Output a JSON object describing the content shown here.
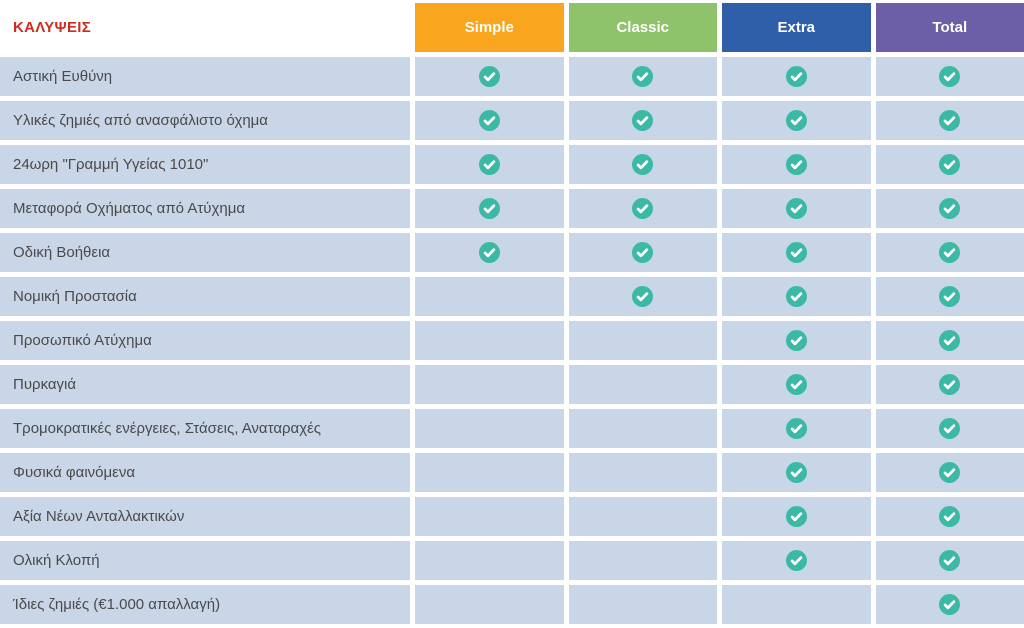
{
  "table": {
    "corner_label": "ΚΑΛΥΨΕΙΣ",
    "corner_color": "#cb2d20",
    "row_bg": "#c9d6e7",
    "check_color": "#3bb9a4",
    "plans": [
      {
        "label": "Simple",
        "color": "#f9a51d"
      },
      {
        "label": "Classic",
        "color": "#8ec36b"
      },
      {
        "label": "Extra",
        "color": "#2f5fa9"
      },
      {
        "label": "Total",
        "color": "#6c5fa7"
      }
    ],
    "rows": [
      {
        "label": "Αστική Ευθύνη",
        "checks": [
          true,
          true,
          true,
          true
        ]
      },
      {
        "label": "Υλικές ζημιές από ανασφάλιστο όχημα",
        "checks": [
          true,
          true,
          true,
          true
        ]
      },
      {
        "label": "24ωρη \"Γραμμή Υγείας 1010\"",
        "checks": [
          true,
          true,
          true,
          true
        ]
      },
      {
        "label": "Μεταφορά Οχήματος από Ατύχημα",
        "checks": [
          true,
          true,
          true,
          true
        ]
      },
      {
        "label": "Οδική Βοήθεια",
        "checks": [
          true,
          true,
          true,
          true
        ]
      },
      {
        "label": "Νομική Προστασία",
        "checks": [
          false,
          true,
          true,
          true
        ]
      },
      {
        "label": "Προσωπικό Ατύχημα",
        "checks": [
          false,
          false,
          true,
          true
        ]
      },
      {
        "label": "Πυρκαγιά",
        "checks": [
          false,
          false,
          true,
          true
        ]
      },
      {
        "label": "Τρομοκρατικές ενέργειες, Στάσεις, Αναταραχές",
        "checks": [
          false,
          false,
          true,
          true
        ]
      },
      {
        "label": "Φυσικά φαινόμενα",
        "checks": [
          false,
          false,
          true,
          true
        ]
      },
      {
        "label": "Αξία Νέων Ανταλλακτικών",
        "checks": [
          false,
          false,
          true,
          true
        ]
      },
      {
        "label": "Ολική Κλοπή",
        "checks": [
          false,
          false,
          true,
          true
        ]
      },
      {
        "label": "Ίδιες ζημιές (€1.000 απαλλαγή)",
        "checks": [
          false,
          false,
          false,
          true
        ]
      }
    ]
  }
}
